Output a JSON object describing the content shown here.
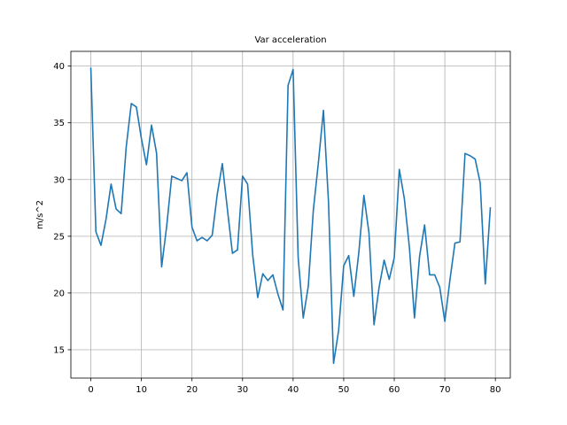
{
  "chart_data": {
    "type": "line",
    "title": "Var acceleration",
    "xlabel": "",
    "ylabel": "m/s^2",
    "xlim": [
      -3.95,
      82.95
    ],
    "ylim": [
      12.5,
      41.3
    ],
    "xticks": [
      0,
      10,
      20,
      30,
      40,
      50,
      60,
      70,
      80
    ],
    "yticks": [
      15,
      20,
      25,
      30,
      35,
      40
    ],
    "grid": true,
    "color": "#1f77b4",
    "series": [
      {
        "x": [
          0,
          1,
          2,
          3,
          4,
          5,
          6,
          7,
          8,
          9,
          10,
          11,
          12,
          13,
          14,
          15,
          16,
          17,
          18,
          19,
          20,
          21,
          22,
          23,
          24,
          25,
          26,
          27,
          28,
          29,
          30,
          31,
          32,
          33,
          34,
          35,
          36,
          37,
          38,
          39,
          40,
          41,
          42,
          43,
          44,
          45,
          46,
          47,
          48,
          49,
          50,
          51,
          52,
          53,
          54,
          55,
          56,
          57,
          58,
          59,
          60,
          61,
          62,
          63,
          64,
          65,
          66,
          67,
          68,
          69,
          70,
          71,
          72,
          73,
          74,
          75,
          76,
          77,
          78,
          79
        ],
        "y": [
          39.8,
          25.4,
          24.2,
          26.5,
          29.6,
          27.4,
          27.0,
          32.9,
          36.7,
          36.4,
          33.6,
          31.3,
          34.8,
          32.3,
          22.3,
          25.9,
          30.3,
          30.1,
          29.9,
          30.6,
          25.8,
          24.6,
          24.9,
          24.6,
          25.1,
          28.7,
          31.4,
          27.4,
          23.5,
          23.8,
          30.3,
          29.6,
          23.4,
          19.6,
          21.7,
          21.1,
          21.6,
          19.9,
          18.5,
          38.3,
          39.7,
          23.1,
          17.8,
          20.6,
          27.3,
          31.5,
          36.1,
          28.0,
          13.8,
          16.7,
          22.4,
          23.3,
          19.7,
          23.6,
          28.6,
          25.3,
          17.2,
          20.5,
          22.9,
          21.2,
          23.1,
          30.9,
          28.3,
          24.0,
          17.8,
          23.2,
          26.0,
          21.6,
          21.6,
          20.5,
          17.5,
          21.1,
          24.4,
          24.5,
          32.3,
          32.1,
          31.8,
          29.7,
          20.8,
          27.5
        ]
      }
    ]
  }
}
